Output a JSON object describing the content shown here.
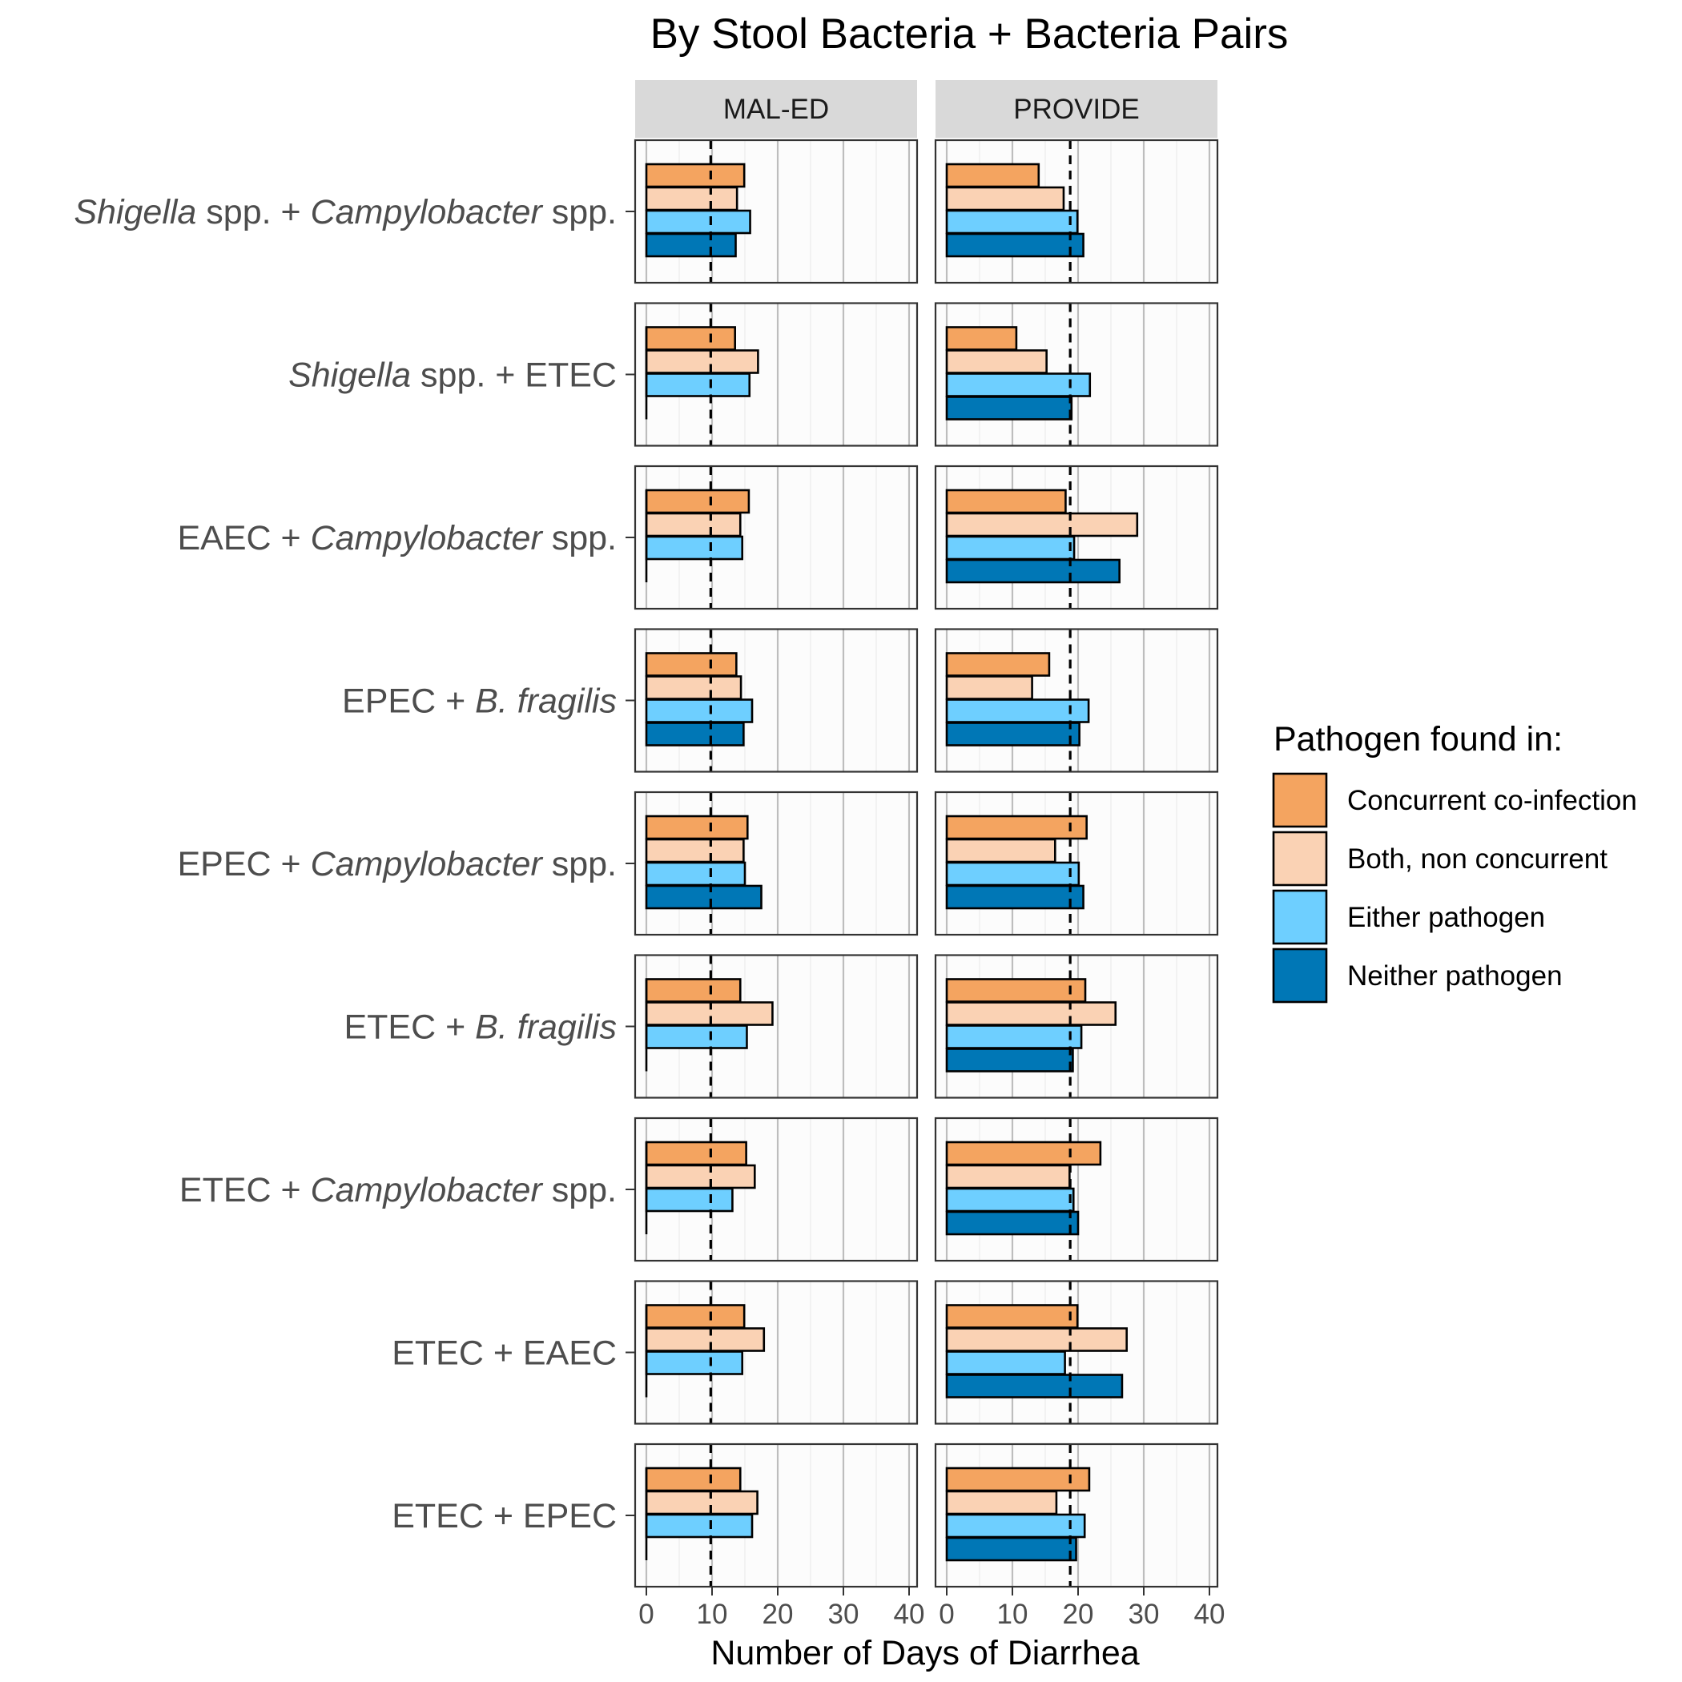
{
  "chart_data": {
    "type": "bar",
    "orientation": "horizontal",
    "title": "By Stool Bacteria + Bacteria Pairs",
    "xlabel": "Number of Days of Diarrhea",
    "ylabel": "",
    "xlim": [
      0,
      40
    ],
    "x_ticks": [
      0,
      10,
      20,
      30,
      40
    ],
    "x_tick_labels": [
      "0",
      "10",
      "20",
      "30",
      "40"
    ],
    "grid": true,
    "legend_position": "right",
    "legend_title": "Pathogen found in:",
    "panels": [
      {
        "label": "MAL-ED",
        "reference_line": 9.8
      },
      {
        "label": "PROVIDE",
        "reference_line": 18.8
      }
    ],
    "series": [
      {
        "name": "Concurrent co-infection",
        "color": "#F4A460"
      },
      {
        "name": "Both, non concurrent",
        "color": "#FAD2B4"
      },
      {
        "name": "Either pathogen",
        "color": "#6ECFFF"
      },
      {
        "name": "Neither pathogen",
        "color": "#0077B6"
      }
    ],
    "categories": [
      {
        "label_parts": [
          [
            "Shigella",
            true
          ],
          [
            " spp. + ",
            false
          ],
          [
            "Campylobacter",
            true
          ],
          [
            " spp.",
            false
          ]
        ],
        "values": {
          "MAL-ED": [
            14.9,
            13.8,
            15.8,
            13.6
          ],
          "PROVIDE": [
            14.0,
            17.8,
            19.9,
            20.8
          ]
        }
      },
      {
        "label_parts": [
          [
            "Shigella",
            true
          ],
          [
            " spp. + ETEC",
            false
          ]
        ],
        "values": {
          "MAL-ED": [
            13.5,
            17.0,
            15.7,
            null
          ],
          "PROVIDE": [
            10.6,
            15.2,
            21.8,
            19.0
          ]
        }
      },
      {
        "label_parts": [
          [
            "EAEC + ",
            false
          ],
          [
            "Campylobacter",
            true
          ],
          [
            " spp.",
            false
          ]
        ],
        "values": {
          "MAL-ED": [
            15.6,
            14.3,
            14.6,
            null
          ],
          "PROVIDE": [
            18.1,
            29.0,
            19.4,
            26.3
          ]
        }
      },
      {
        "label_parts": [
          [
            "EPEC + ",
            false
          ],
          [
            "B. fragilis",
            true
          ]
        ],
        "values": {
          "MAL-ED": [
            13.7,
            14.4,
            16.1,
            14.8
          ],
          "PROVIDE": [
            15.6,
            13.0,
            21.6,
            20.2
          ]
        }
      },
      {
        "label_parts": [
          [
            "EPEC + ",
            false
          ],
          [
            "Campylobacter",
            true
          ],
          [
            " spp.",
            false
          ]
        ],
        "values": {
          "MAL-ED": [
            15.4,
            14.8,
            15.0,
            17.5
          ],
          "PROVIDE": [
            21.3,
            16.5,
            20.1,
            20.8
          ]
        }
      },
      {
        "label_parts": [
          [
            "ETEC + ",
            false
          ],
          [
            "B. fragilis",
            true
          ]
        ],
        "values": {
          "MAL-ED": [
            14.3,
            19.2,
            15.3,
            null
          ],
          "PROVIDE": [
            21.1,
            25.7,
            20.5,
            19.2
          ]
        }
      },
      {
        "label_parts": [
          [
            "ETEC + ",
            false
          ],
          [
            "Campylobacter",
            true
          ],
          [
            " spp.",
            false
          ]
        ],
        "values": {
          "MAL-ED": [
            15.2,
            16.5,
            13.1,
            null
          ],
          "PROVIDE": [
            23.4,
            18.7,
            19.3,
            20.0
          ]
        }
      },
      {
        "label_parts": [
          [
            "ETEC + EAEC",
            false
          ]
        ],
        "values": {
          "MAL-ED": [
            14.9,
            17.9,
            14.6,
            null
          ],
          "PROVIDE": [
            19.9,
            27.4,
            18.0,
            26.7
          ]
        }
      },
      {
        "label_parts": [
          [
            "ETEC + EPEC",
            false
          ]
        ],
        "values": {
          "MAL-ED": [
            14.3,
            16.9,
            16.1,
            null
          ],
          "PROVIDE": [
            21.7,
            16.7,
            21.0,
            19.7
          ]
        }
      }
    ]
  }
}
